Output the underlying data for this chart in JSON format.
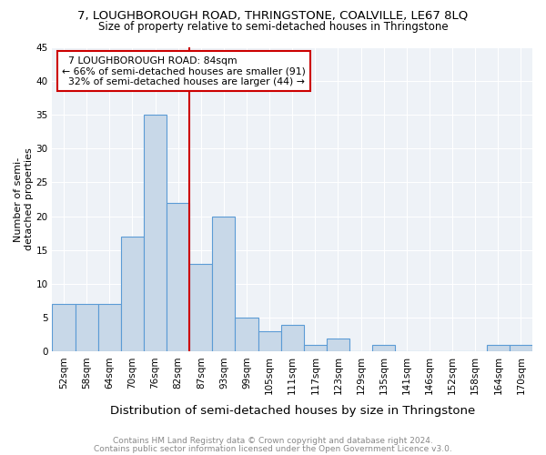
{
  "title": "7, LOUGHBOROUGH ROAD, THRINGSTONE, COALVILLE, LE67 8LQ",
  "subtitle": "Size of property relative to semi-detached houses in Thringstone",
  "xlabel": "Distribution of semi-detached houses by size in Thringstone",
  "ylabel": "Number of semi-\ndetached properties",
  "categories": [
    "52sqm",
    "58sqm",
    "64sqm",
    "70sqm",
    "76sqm",
    "82sqm",
    "87sqm",
    "93sqm",
    "99sqm",
    "105sqm",
    "111sqm",
    "117sqm",
    "123sqm",
    "129sqm",
    "135sqm",
    "141sqm",
    "146sqm",
    "152sqm",
    "158sqm",
    "164sqm",
    "170sqm"
  ],
  "values": [
    7,
    7,
    7,
    17,
    35,
    22,
    13,
    20,
    5,
    3,
    4,
    1,
    2,
    0,
    1,
    0,
    0,
    0,
    0,
    1,
    1
  ],
  "bar_color": "#c8d8e8",
  "bar_edge_color": "#5b9bd5",
  "property_label": "7 LOUGHBOROUGH ROAD: 84sqm",
  "pct_smaller": 66,
  "n_smaller": 91,
  "pct_larger": 32,
  "n_larger": 44,
  "vline_x": 5.5,
  "vline_color": "#cc0000",
  "annotation_box_color": "#cc0000",
  "ylim": [
    0,
    45
  ],
  "yticks": [
    0,
    5,
    10,
    15,
    20,
    25,
    30,
    35,
    40,
    45
  ],
  "footer1": "Contains HM Land Registry data © Crown copyright and database right 2024.",
  "footer2": "Contains public sector information licensed under the Open Government Licence v3.0.",
  "background_color": "#eef2f7",
  "grid_color": "#ffffff",
  "title_fontsize": 9.5,
  "subtitle_fontsize": 8.5,
  "xlabel_fontsize": 9.5,
  "ylabel_fontsize": 8,
  "tick_fontsize": 7.5,
  "footer_fontsize": 6.5,
  "ann_fontsize": 7.8
}
